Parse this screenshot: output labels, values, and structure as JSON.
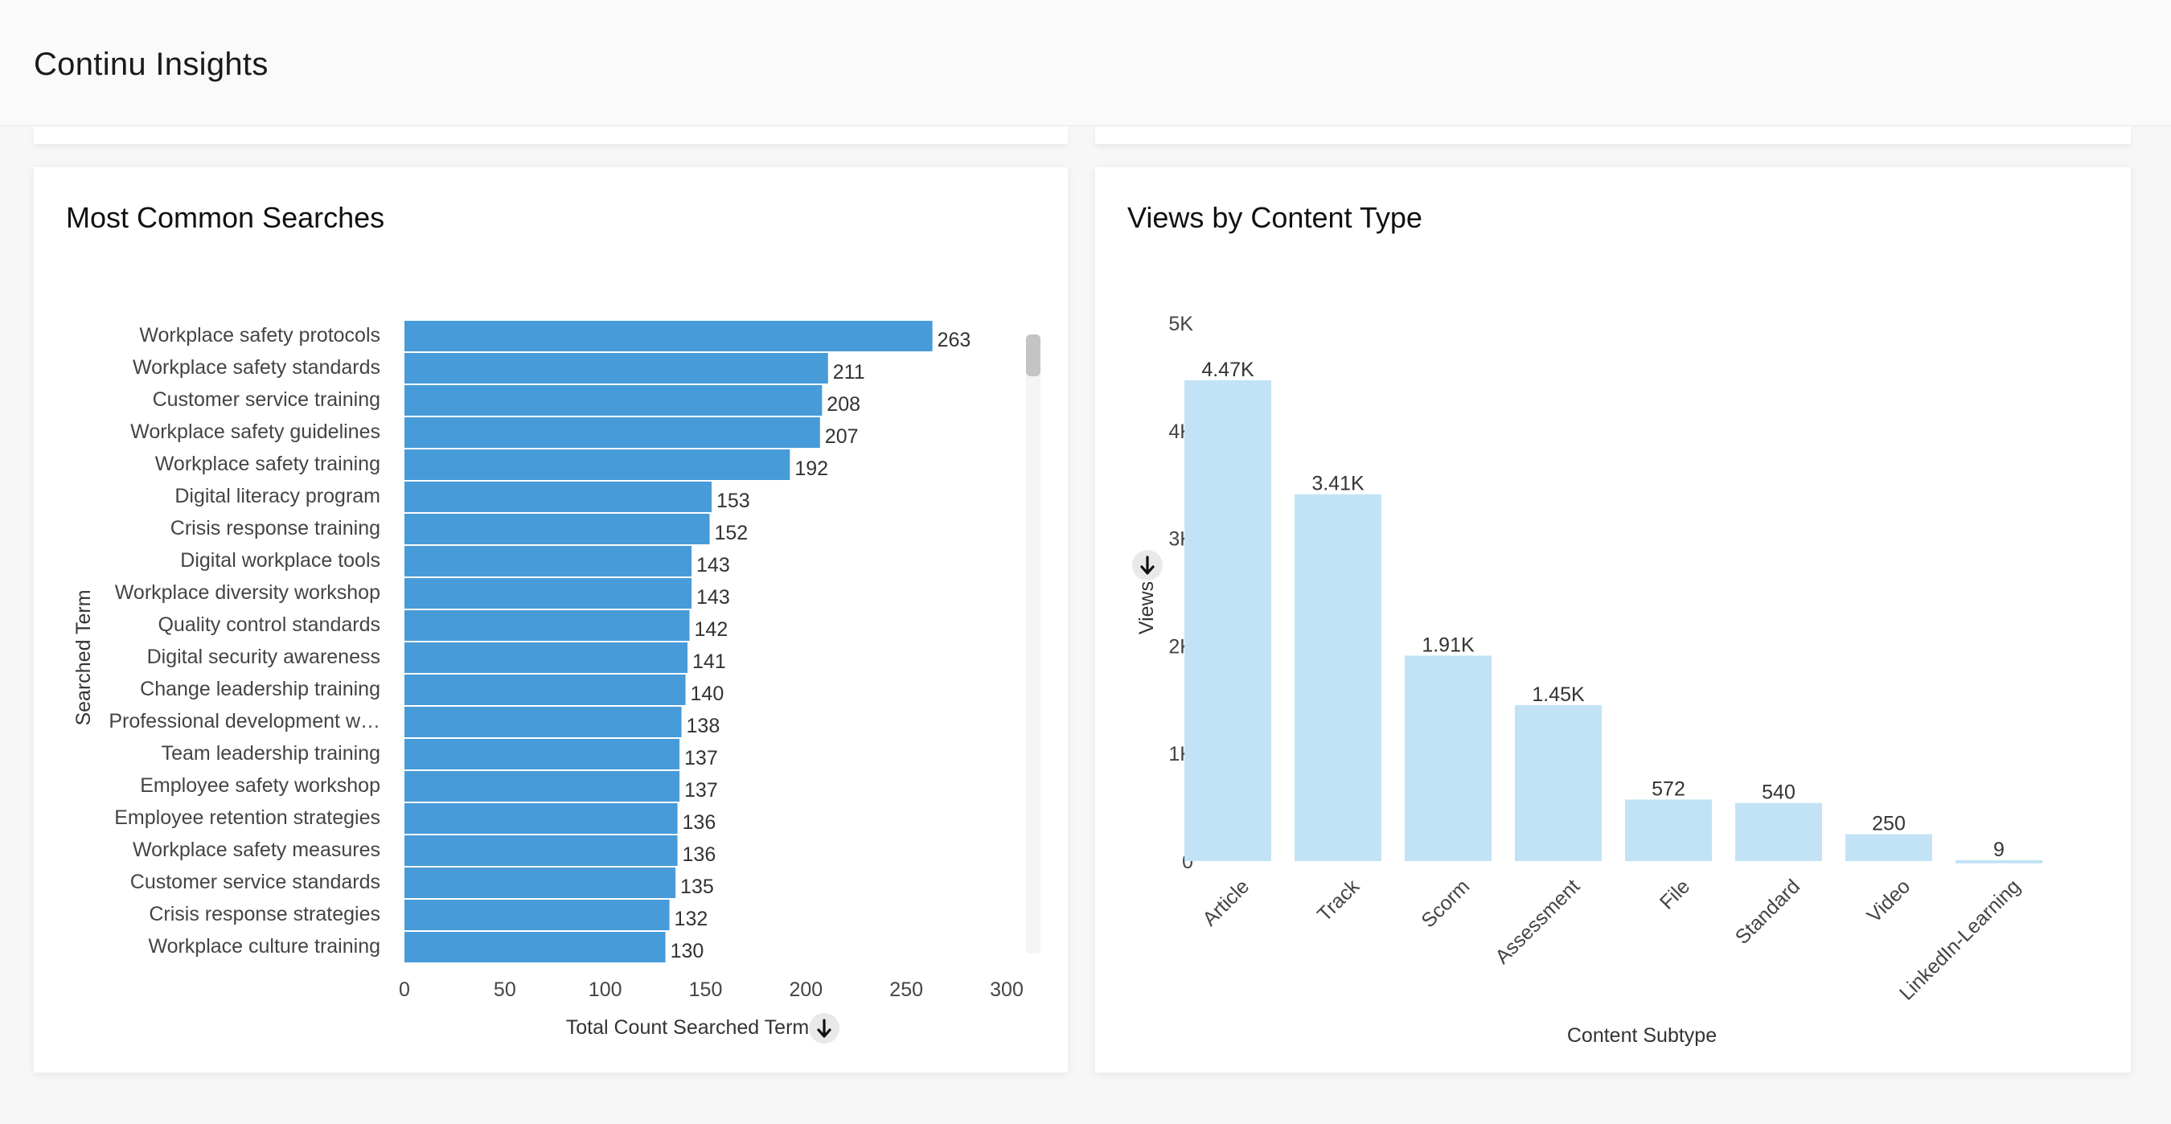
{
  "app": {
    "title": "Continu Insights"
  },
  "searches_card": {
    "title": "Most Common Searches",
    "chart_data": {
      "type": "bar",
      "orientation": "horizontal",
      "title": "Most Common Searches",
      "xlabel": "Total Count Searched Term",
      "ylabel": "Searched Term",
      "xlim": [
        0,
        300
      ],
      "xticks": [
        "0",
        "50",
        "100",
        "150",
        "200",
        "250",
        "300"
      ],
      "categories": [
        "Workplace safety protocols",
        "Workplace safety standards",
        "Customer service training",
        "Workplace safety guidelines",
        "Workplace safety training",
        "Digital literacy program",
        "Crisis response training",
        "Digital workplace tools",
        "Workplace diversity workshop",
        "Quality control standards",
        "Digital security awareness",
        "Change leadership training",
        "Professional development w…",
        "Team leadership training",
        "Employee safety workshop",
        "Employee retention strategies",
        "Workplace safety measures",
        "Customer service standards",
        "Crisis response strategies",
        "Workplace culture training"
      ],
      "values": [
        263,
        211,
        208,
        207,
        192,
        153,
        152,
        143,
        143,
        142,
        141,
        140,
        138,
        137,
        137,
        136,
        136,
        135,
        132,
        130
      ],
      "labels": [
        "263",
        "211",
        "208",
        "207",
        "192",
        "153",
        "152",
        "143",
        "143",
        "142",
        "141",
        "140",
        "138",
        "137",
        "137",
        "136",
        "136",
        "135",
        "132",
        "130"
      ],
      "bar_color": "#479bd9"
    }
  },
  "views_card": {
    "title": "Views by Content Type",
    "chart_data": {
      "type": "bar",
      "title": "Views by Content Type",
      "xlabel": "Content Subtype",
      "ylabel": "Views",
      "ylim": [
        0,
        5000
      ],
      "yticks": [
        {
          "value": 0,
          "label": "0"
        },
        {
          "value": 1000,
          "label": "1K"
        },
        {
          "value": 2000,
          "label": "2K"
        },
        {
          "value": 3000,
          "label": "3K"
        },
        {
          "value": 4000,
          "label": "4K"
        },
        {
          "value": 5000,
          "label": "5K"
        }
      ],
      "categories": [
        "Article",
        "Track",
        "Scorm",
        "Assessment",
        "File",
        "Standard",
        "Video",
        "LinkedIn-Learning"
      ],
      "values": [
        4470,
        3410,
        1910,
        1450,
        572,
        540,
        250,
        9
      ],
      "labels": [
        "4.47K",
        "3.41K",
        "1.91K",
        "1.45K",
        "572",
        "540",
        "250",
        "9"
      ],
      "bar_color": "#c2e3f6"
    }
  }
}
